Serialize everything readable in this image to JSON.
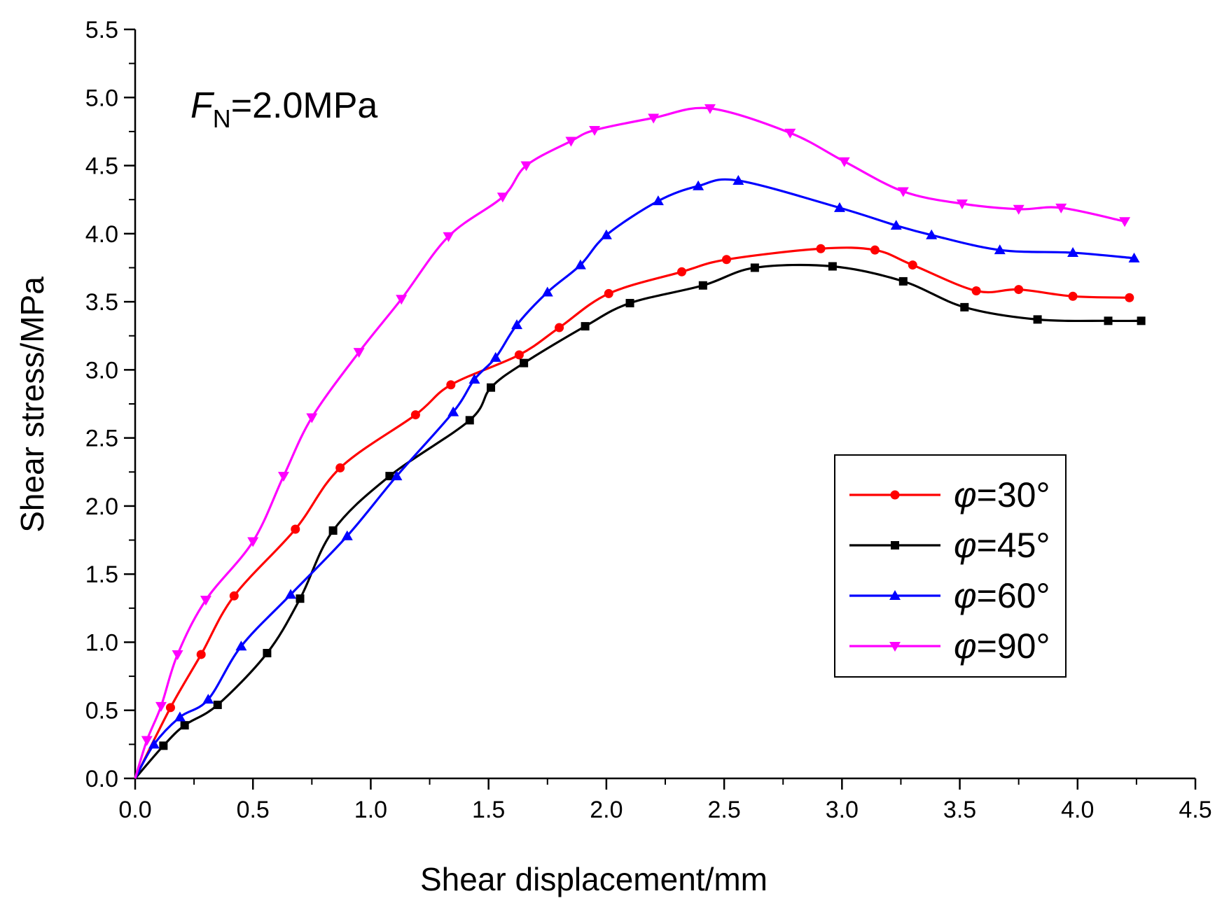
{
  "chart_data": {
    "type": "line",
    "xlabel": "Shear displacement/mm",
    "ylabel": "Shear stress/MPa",
    "xlim": [
      0,
      4.5
    ],
    "ylim": [
      0,
      5.5
    ],
    "x_ticks": [
      "0.0",
      "0.5",
      "1.0",
      "1.5",
      "2.0",
      "2.5",
      "3.0",
      "3.5",
      "4.0",
      "4.5"
    ],
    "y_ticks": [
      "0.0",
      "0.5",
      "1.0",
      "1.5",
      "2.0",
      "2.5",
      "3.0",
      "3.5",
      "4.0",
      "4.5",
      "5.0",
      "5.5"
    ],
    "annotation": {
      "symbol": "F",
      "subscript": "N",
      "text": "=2.0MPa"
    },
    "legend_position": "right",
    "grid": false,
    "series": [
      {
        "name": "φ=30°",
        "symbol": "φ",
        "label": "=30°",
        "color": "#ff0000",
        "marker": "circle",
        "points": [
          [
            0,
            0
          ],
          [
            0.15,
            0.52
          ],
          [
            0.28,
            0.91
          ],
          [
            0.42,
            1.34
          ],
          [
            0.68,
            1.83
          ],
          [
            0.87,
            2.28
          ],
          [
            1.19,
            2.67
          ],
          [
            1.34,
            2.89
          ],
          [
            1.63,
            3.11
          ],
          [
            1.8,
            3.31
          ],
          [
            2.01,
            3.56
          ],
          [
            2.32,
            3.72
          ],
          [
            2.51,
            3.81
          ],
          [
            2.91,
            3.89
          ],
          [
            3.14,
            3.88
          ],
          [
            3.3,
            3.77
          ],
          [
            3.57,
            3.58
          ],
          [
            3.75,
            3.59
          ],
          [
            3.98,
            3.54
          ],
          [
            4.22,
            3.53
          ]
        ]
      },
      {
        "name": "φ=45°",
        "symbol": "φ",
        "label": "=45°",
        "color": "#000000",
        "marker": "square",
        "points": [
          [
            0,
            0
          ],
          [
            0.12,
            0.24
          ],
          [
            0.21,
            0.39
          ],
          [
            0.35,
            0.54
          ],
          [
            0.56,
            0.92
          ],
          [
            0.7,
            1.32
          ],
          [
            0.84,
            1.82
          ],
          [
            1.08,
            2.22
          ],
          [
            1.42,
            2.63
          ],
          [
            1.51,
            2.87
          ],
          [
            1.65,
            3.05
          ],
          [
            1.91,
            3.32
          ],
          [
            2.1,
            3.49
          ],
          [
            2.41,
            3.62
          ],
          [
            2.63,
            3.75
          ],
          [
            2.96,
            3.76
          ],
          [
            3.26,
            3.65
          ],
          [
            3.52,
            3.46
          ],
          [
            3.83,
            3.37
          ],
          [
            4.13,
            3.36
          ],
          [
            4.27,
            3.36
          ]
        ]
      },
      {
        "name": "φ=60°",
        "symbol": "φ",
        "label": "=60°",
        "color": "#0000ff",
        "marker": "triangle-up",
        "points": [
          [
            0,
            0
          ],
          [
            0.08,
            0.25
          ],
          [
            0.19,
            0.45
          ],
          [
            0.31,
            0.58
          ],
          [
            0.45,
            0.97
          ],
          [
            0.66,
            1.35
          ],
          [
            0.9,
            1.78
          ],
          [
            1.11,
            2.22
          ],
          [
            1.35,
            2.69
          ],
          [
            1.44,
            2.93
          ],
          [
            1.53,
            3.09
          ],
          [
            1.62,
            3.33
          ],
          [
            1.75,
            3.57
          ],
          [
            1.89,
            3.77
          ],
          [
            2.0,
            3.99
          ],
          [
            2.22,
            4.24
          ],
          [
            2.39,
            4.35
          ],
          [
            2.56,
            4.39
          ],
          [
            2.99,
            4.19
          ],
          [
            3.23,
            4.06
          ],
          [
            3.38,
            3.99
          ],
          [
            3.67,
            3.88
          ],
          [
            3.98,
            3.86
          ],
          [
            4.24,
            3.82
          ]
        ]
      },
      {
        "name": "φ=90°",
        "symbol": "φ",
        "label": "=90°",
        "color": "#ff00ff",
        "marker": "triangle-down",
        "points": [
          [
            0,
            0
          ],
          [
            0.05,
            0.28
          ],
          [
            0.11,
            0.53
          ],
          [
            0.18,
            0.91
          ],
          [
            0.3,
            1.31
          ],
          [
            0.5,
            1.74
          ],
          [
            0.63,
            2.22
          ],
          [
            0.75,
            2.65
          ],
          [
            0.95,
            3.13
          ],
          [
            1.13,
            3.52
          ],
          [
            1.33,
            3.98
          ],
          [
            1.56,
            4.27
          ],
          [
            1.66,
            4.5
          ],
          [
            1.85,
            4.68
          ],
          [
            1.95,
            4.76
          ],
          [
            2.2,
            4.85
          ],
          [
            2.44,
            4.92
          ],
          [
            2.78,
            4.74
          ],
          [
            3.01,
            4.53
          ],
          [
            3.26,
            4.31
          ],
          [
            3.51,
            4.22
          ],
          [
            3.75,
            4.18
          ],
          [
            3.93,
            4.19
          ],
          [
            4.2,
            4.09
          ]
        ]
      }
    ]
  }
}
